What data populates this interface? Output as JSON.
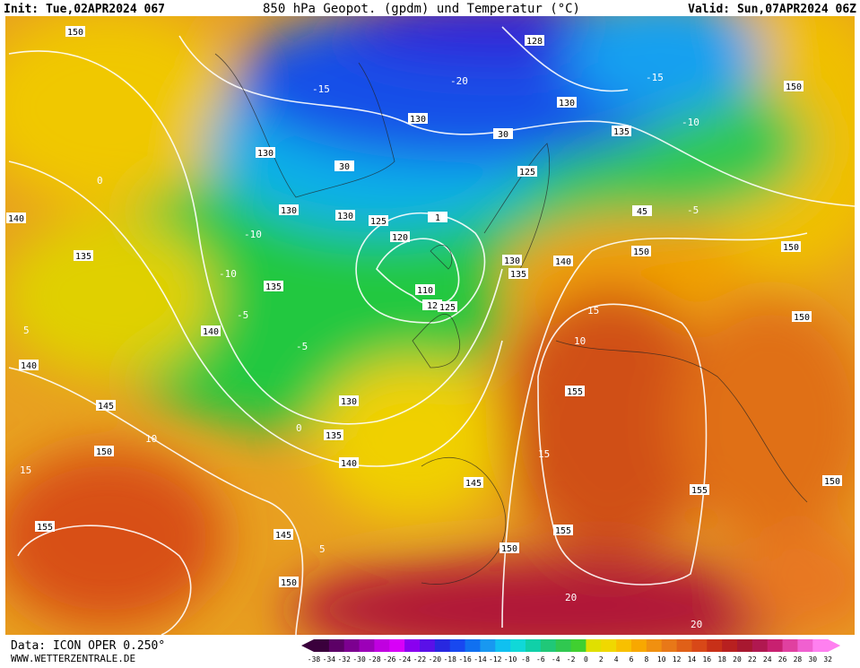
{
  "header": {
    "init": "Init: Tue,02APR2024 067",
    "title": "850 hPa Geopot. (gpdm) und Temperatur (°C)",
    "valid": "Valid: Sun,07APR2024 06Z"
  },
  "footer": {
    "data": "Data: ICON OPER 0.250°",
    "url": "WWW.WETTERZENTRALE.DE"
  },
  "colorbar": {
    "labels": [
      -38,
      -34,
      -32,
      -30,
      -28,
      -26,
      -24,
      -22,
      -20,
      -18,
      -16,
      -14,
      -12,
      -10,
      -8,
      -6,
      -4,
      -2,
      0,
      2,
      4,
      6,
      8,
      10,
      12,
      14,
      16,
      18,
      20,
      22,
      24,
      26,
      28,
      30,
      32
    ],
    "colors": [
      "#3a003c",
      "#5c0066",
      "#7c0090",
      "#9c00b8",
      "#c000e0",
      "#d800f8",
      "#8a00f0",
      "#5a10e8",
      "#2828e0",
      "#1848f0",
      "#1070f0",
      "#1898f0",
      "#10c0f0",
      "#10d8d8",
      "#10d0a8",
      "#20c878",
      "#30c850",
      "#40d030",
      "#e0e000",
      "#f0d800",
      "#f8c000",
      "#f8a800",
      "#f09010",
      "#e87818",
      "#e06018",
      "#d84818",
      "#c83018",
      "#b82020",
      "#a81830",
      "#b01850",
      "#c82070",
      "#e040a0",
      "#f060d0",
      "#ff80f0"
    ]
  },
  "contour_labels": [
    150,
    128,
    130,
    130,
    135,
    150,
    130,
    130,
    130,
    125,
    120,
    125,
    130,
    135,
    140,
    150,
    150,
    45,
    140,
    135,
    135,
    140,
    110,
    12,
    125,
    150,
    140,
    145,
    130,
    155,
    135,
    150,
    140,
    145,
    155,
    150,
    155,
    145,
    155,
    150,
    150,
    30,
    30,
    1
  ],
  "temperature_labels": [
    -15,
    -10,
    -20,
    -15,
    -10,
    -5,
    -10,
    -5,
    0,
    5,
    10,
    15,
    10,
    15,
    20,
    -5,
    0,
    5,
    15,
    20
  ]
}
